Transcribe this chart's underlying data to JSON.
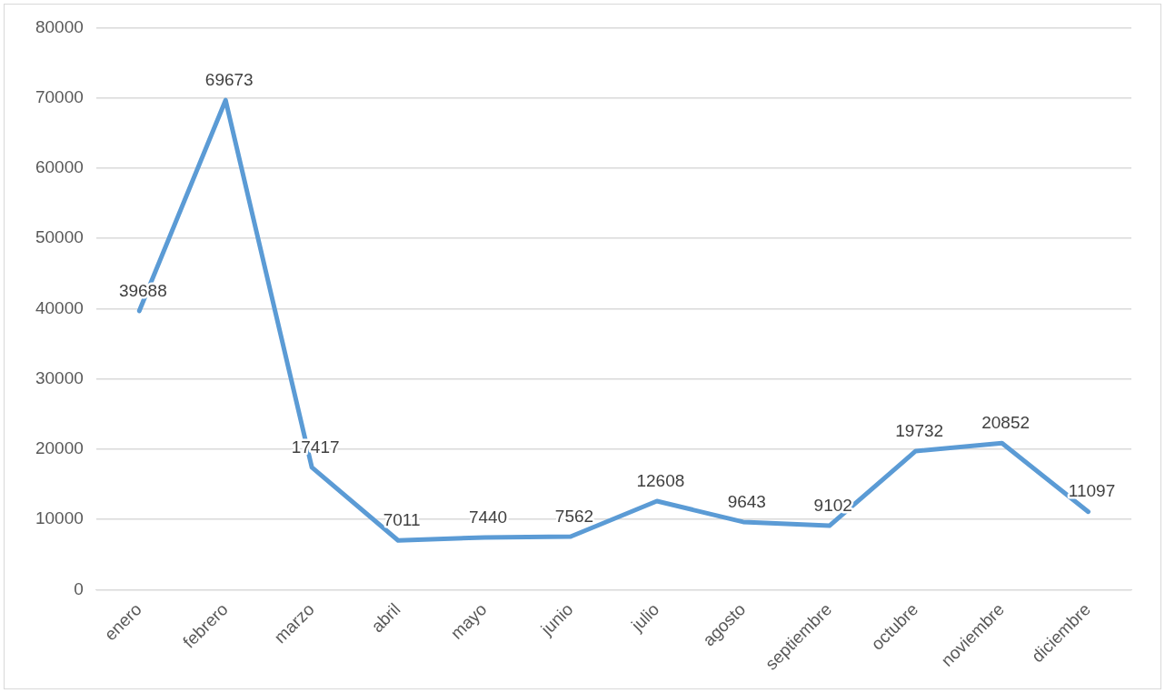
{
  "chart_data": {
    "type": "line",
    "categories": [
      "enero",
      "febrero",
      "marzo",
      "abril",
      "mayo",
      "junio",
      "julio",
      "agosto",
      "septiembre",
      "octubre",
      "noviembre",
      "diciembre"
    ],
    "series": [
      {
        "color": "#5b9bd5",
        "values": [
          39688,
          69673,
          17417,
          7011,
          7440,
          7562,
          12608,
          9643,
          9102,
          19732,
          20852,
          11097
        ]
      }
    ],
    "ylim": [
      0,
      80000
    ],
    "yticks": [
      0,
      10000,
      20000,
      30000,
      40000,
      50000,
      60000,
      70000,
      80000
    ],
    "grid": "y",
    "legend": false,
    "marker": "none",
    "line_style": "solid",
    "data_labels": true
  }
}
